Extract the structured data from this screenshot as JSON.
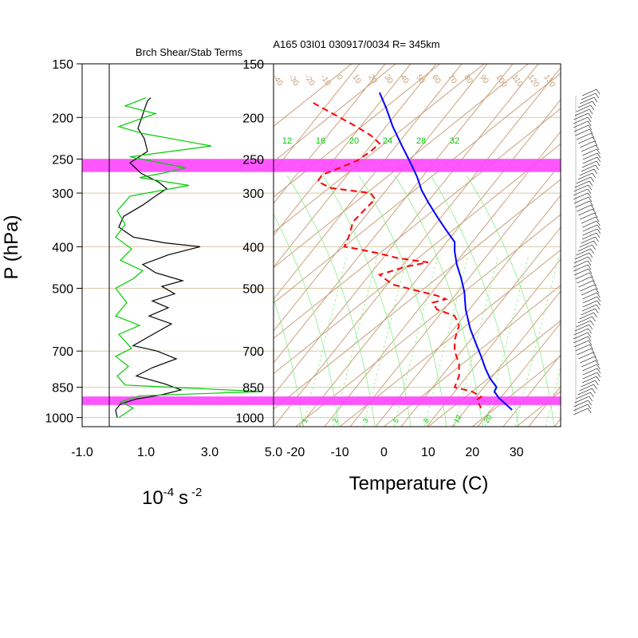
{
  "chart_data": [
    {
      "type": "line",
      "title": "Brch Shear/Stab Terms",
      "xlabel": "10-4 s -2",
      "xlabel_parts": {
        "base": "10",
        "exp1": "-4",
        "unit": "s",
        "exp2": "-2"
      },
      "ylabel": "P (hPa)",
      "xlim": [
        -1.0,
        5.0
      ],
      "xticks": [
        "-1.0",
        "1.0",
        "3.0",
        "5.0"
      ],
      "yticks": [
        150,
        200,
        250,
        300,
        400,
        500,
        700,
        850,
        1000
      ],
      "ytick_labels": [
        "150",
        "200",
        "250",
        "300",
        "400",
        "500",
        "700",
        "850",
        "1000"
      ],
      "series": [
        {
          "color": "#000000",
          "points": [
            [
              1.15,
              180
            ],
            [
              1.05,
              183
            ],
            [
              0.95,
              192
            ],
            [
              0.85,
              202
            ],
            [
              0.75,
              212
            ],
            [
              0.95,
              224
            ],
            [
              1.05,
              240
            ],
            [
              0.5,
              255
            ],
            [
              0.85,
              270
            ],
            [
              1.4,
              283
            ],
            [
              1.65,
              293
            ],
            [
              1.3,
              305
            ],
            [
              0.9,
              320
            ],
            [
              0.3,
              340
            ],
            [
              0.15,
              360
            ],
            [
              0.6,
              380
            ],
            [
              1.6,
              392
            ],
            [
              2.7,
              400
            ],
            [
              1.7,
              418
            ],
            [
              0.9,
              440
            ],
            [
              1.3,
              460
            ],
            [
              2.15,
              480
            ],
            [
              1.5,
              495
            ],
            [
              1.9,
              515
            ],
            [
              1.2,
              535
            ],
            [
              1.7,
              555
            ],
            [
              1.1,
              580
            ],
            [
              1.8,
              605
            ],
            [
              1.3,
              635
            ],
            [
              0.6,
              680
            ],
            [
              1.35,
              700
            ],
            [
              1.95,
              730
            ],
            [
              1.2,
              765
            ],
            [
              0.7,
              800
            ],
            [
              1.6,
              835
            ],
            [
              2.1,
              862
            ],
            [
              1.5,
              885
            ],
            [
              0.7,
              905
            ],
            [
              0.2,
              930
            ],
            [
              0.05,
              960
            ],
            [
              0.1,
              1000
            ]
          ]
        },
        {
          "color": "#00cc00",
          "points": [
            [
              1.0,
              180
            ],
            [
              0.35,
              188
            ],
            [
              1.3,
              196
            ],
            [
              0.15,
              210
            ],
            [
              0.9,
              218
            ],
            [
              3.05,
              233
            ],
            [
              0.5,
              247
            ],
            [
              2.25,
              262
            ],
            [
              1.5,
              270
            ],
            [
              0.8,
              276
            ],
            [
              2.35,
              288
            ],
            [
              0.5,
              305
            ],
            [
              0.1,
              330
            ],
            [
              0.35,
              355
            ],
            [
              0.05,
              380
            ],
            [
              0.55,
              405
            ],
            [
              0.2,
              430
            ],
            [
              0.9,
              455
            ],
            [
              0.6,
              475
            ],
            [
              0.05,
              500
            ],
            [
              0.4,
              540
            ],
            [
              0.05,
              580
            ],
            [
              0.8,
              610
            ],
            [
              0.15,
              640
            ],
            [
              0.55,
              690
            ],
            [
              0.05,
              720
            ],
            [
              0.45,
              760
            ],
            [
              0.1,
              800
            ],
            [
              0.35,
              840
            ],
            [
              4.65,
              870
            ],
            [
              0.8,
              890
            ],
            [
              0.2,
              920
            ],
            [
              0.6,
              950
            ],
            [
              0.15,
              1000
            ]
          ]
        }
      ],
      "highlight_bands": [
        [
          250,
          268
        ],
        [
          893,
          935
        ]
      ],
      "highlight_color": "#ff44ff"
    },
    {
      "type": "line",
      "title": "A165 03I01 030917/0034 R= 345km",
      "xlabel": "Temperature (C)",
      "xlim": [
        -25,
        40
      ],
      "xticks": [
        "-20",
        "-10",
        "0",
        "10",
        "20",
        "30"
      ],
      "yticks": [
        150,
        200,
        250,
        300,
        400,
        500,
        700,
        850,
        1000
      ],
      "ytick_labels": [
        "150",
        "200",
        "250",
        "300",
        "400",
        "500",
        "700",
        "850",
        "1000"
      ],
      "series": [
        {
          "color": "#0000ff",
          "style": "solid",
          "points": [
            [
              -1,
              175
            ],
            [
              0.5,
              190
            ],
            [
              2,
              210
            ],
            [
              4,
              232
            ],
            [
              6,
              255
            ],
            [
              7.5,
              275
            ],
            [
              8.5,
              295
            ],
            [
              10,
              315
            ],
            [
              12,
              340
            ],
            [
              14,
              365
            ],
            [
              16,
              390
            ],
            [
              16,
              410
            ],
            [
              16.5,
              440
            ],
            [
              17.5,
              475
            ],
            [
              18.2,
              510
            ],
            [
              18.5,
              560
            ],
            [
              19.5,
              620
            ],
            [
              21,
              680
            ],
            [
              22,
              720
            ],
            [
              23,
              770
            ],
            [
              24,
              810
            ],
            [
              25.5,
              850
            ],
            [
              25,
              870
            ],
            [
              26,
              900
            ],
            [
              29,
              960
            ]
          ]
        },
        {
          "color": "#ff0000",
          "style": "dashed",
          "points": [
            [
              -16,
              185
            ],
            [
              -12,
              195
            ],
            [
              -7,
              208
            ],
            [
              -3,
              220
            ],
            [
              -1,
              230
            ],
            [
              -3,
              240
            ],
            [
              -6,
              252
            ],
            [
              -10,
              262
            ],
            [
              -14,
              272
            ],
            [
              -15,
              282
            ],
            [
              -12,
              292
            ],
            [
              -3,
              300
            ],
            [
              -2,
              310
            ],
            [
              -4,
              325
            ],
            [
              -7,
              350
            ],
            [
              -8,
              380
            ],
            [
              -9,
              400
            ],
            [
              -6,
              405
            ],
            [
              -1,
              415
            ],
            [
              3,
              425
            ],
            [
              10,
              435
            ],
            [
              5,
              445
            ],
            [
              -1,
              465
            ],
            [
              2,
              490
            ],
            [
              7,
              505
            ],
            [
              12,
              520
            ],
            [
              14,
              530
            ],
            [
              11,
              540
            ],
            [
              12,
              560
            ],
            [
              16,
              580
            ],
            [
              17,
              610
            ],
            [
              16,
              660
            ],
            [
              16,
              700
            ],
            [
              17,
              750
            ],
            [
              17,
              800
            ],
            [
              16,
              850
            ],
            [
              20,
              870
            ],
            [
              22,
              895
            ],
            [
              21,
              910
            ],
            [
              22,
              950
            ]
          ]
        }
      ],
      "skew_label_values": [
        "-40",
        "-30",
        "-20",
        "-10",
        "0",
        "10",
        "20",
        "30",
        "40",
        "50",
        "60",
        "70",
        "80",
        "90",
        "100",
        "110",
        "120",
        "130",
        "140",
        "150"
      ],
      "mixing_ratio_labels": [
        "1",
        "2",
        "3",
        "5",
        "8",
        "12",
        "20"
      ],
      "theta_e_labels": [
        "12",
        "16",
        "20",
        "24",
        "28",
        "32"
      ],
      "highlight_bands": [
        [
          250,
          268
        ],
        [
          893,
          935
        ]
      ],
      "highlight_color": "#ff44ff"
    }
  ],
  "colors": {
    "skew_grid": "#c8a07a",
    "isobar": "#d8c8a8",
    "label_green": "#00cc00",
    "moist_adiabat": "#88ee88",
    "highlight": "#ff44ff"
  }
}
